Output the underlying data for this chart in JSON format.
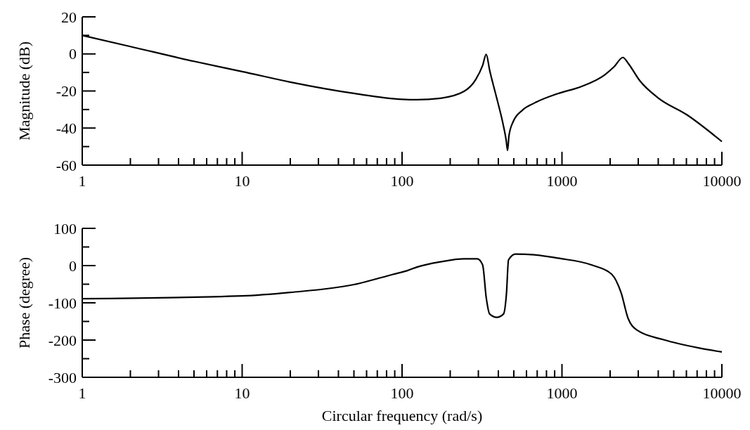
{
  "chart_data": [
    {
      "type": "line",
      "ylabel": "Magnitude (dB)",
      "log": "x",
      "color": "#000000",
      "marker": "none",
      "line_style": "solid",
      "x": [
        1,
        2,
        5,
        10,
        20,
        50,
        100,
        124,
        174,
        244,
        289,
        319,
        336,
        353,
        391,
        425,
        448,
        457,
        466,
        495,
        567,
        672,
        942,
        1319,
        1849,
        2118,
        2405,
        2592,
        3070,
        4020,
        6030,
        10000
      ],
      "values": [
        10,
        4,
        -4,
        -9.5,
        -15.2,
        -21.3,
        -24.5,
        -24.7,
        -23.9,
        -20.2,
        -13.8,
        -6.2,
        -0.2,
        -8.8,
        -23.9,
        -36.6,
        -46.7,
        -52.1,
        -44.2,
        -36.6,
        -30.3,
        -26.5,
        -21.4,
        -17.6,
        -11.3,
        -6.9,
        -1.9,
        -5,
        -14.5,
        -23.9,
        -32.8,
        -47.3
      ],
      "xlim": [
        1,
        10000
      ],
      "ylim": [
        -60,
        20
      ],
      "xticks": [
        1,
        {
          "value": 2,
          "label": null
        },
        {
          "value": 3,
          "label": null
        },
        {
          "value": 4,
          "label": null
        },
        {
          "value": 5,
          "label": null
        },
        {
          "value": 6,
          "label": null
        },
        {
          "value": 7,
          "label": null
        },
        {
          "value": 8,
          "label": null
        },
        {
          "value": 9,
          "label": null
        },
        10,
        {
          "value": 20,
          "label": null
        },
        {
          "value": 30,
          "label": null
        },
        {
          "value": 40,
          "label": null
        },
        {
          "value": 50,
          "label": null
        },
        {
          "value": 60,
          "label": null
        },
        {
          "value": 70,
          "label": null
        },
        {
          "value": 80,
          "label": null
        },
        {
          "value": 90,
          "label": null
        },
        100,
        {
          "value": 200,
          "label": null
        },
        {
          "value": 300,
          "label": null
        },
        {
          "value": 400,
          "label": null
        },
        {
          "value": 500,
          "label": null
        },
        {
          "value": 600,
          "label": null
        },
        {
          "value": 700,
          "label": null
        },
        {
          "value": 800,
          "label": null
        },
        {
          "value": 900,
          "label": null
        },
        1000,
        {
          "value": 2000,
          "label": null
        },
        {
          "value": 3000,
          "label": null
        },
        {
          "value": 4000,
          "label": null
        },
        {
          "value": 5000,
          "label": null
        },
        {
          "value": 6000,
          "label": null
        },
        {
          "value": 7000,
          "label": null
        },
        {
          "value": 8000,
          "label": null
        },
        {
          "value": 9000,
          "label": null
        },
        10000
      ],
      "yticks": [
        -60,
        {
          "value": -50,
          "label": null
        },
        -40,
        {
          "value": -30,
          "label": null
        },
        -20,
        {
          "value": -10,
          "label": null
        },
        0,
        {
          "value": 10,
          "label": null
        },
        20
      ]
    },
    {
      "type": "line",
      "xlabel": "Circular frequency (rad/s)",
      "ylabel": "Phase (degree)",
      "log": "x",
      "color": "#000000",
      "marker": "none",
      "line_style": "solid",
      "x": [
        1,
        10,
        20,
        50,
        88.6,
        108,
        124,
        174,
        244,
        295,
        319,
        336,
        353,
        391,
        431,
        450,
        463,
        512,
        672,
        942,
        1553,
        2045,
        2343,
        2592,
        2963,
        4326,
        7145,
        10000
      ],
      "values": [
        -89,
        -81.5,
        -72,
        -51,
        -23,
        -13.4,
        -4,
        10,
        18,
        18,
        2,
        -86,
        -130,
        -139,
        -130,
        -73,
        15,
        31,
        29,
        20,
        1,
        -23,
        -73,
        -142,
        -174,
        -199,
        -221,
        -232
      ],
      "xlim": [
        1,
        10000
      ],
      "ylim": [
        -300,
        100
      ],
      "xticks": [
        1,
        {
          "value": 2,
          "label": null
        },
        {
          "value": 3,
          "label": null
        },
        {
          "value": 4,
          "label": null
        },
        {
          "value": 5,
          "label": null
        },
        {
          "value": 6,
          "label": null
        },
        {
          "value": 7,
          "label": null
        },
        {
          "value": 8,
          "label": null
        },
        {
          "value": 9,
          "label": null
        },
        10,
        {
          "value": 20,
          "label": null
        },
        {
          "value": 30,
          "label": null
        },
        {
          "value": 40,
          "label": null
        },
        {
          "value": 50,
          "label": null
        },
        {
          "value": 60,
          "label": null
        },
        {
          "value": 70,
          "label": null
        },
        {
          "value": 80,
          "label": null
        },
        {
          "value": 90,
          "label": null
        },
        100,
        {
          "value": 200,
          "label": null
        },
        {
          "value": 300,
          "label": null
        },
        {
          "value": 400,
          "label": null
        },
        {
          "value": 500,
          "label": null
        },
        {
          "value": 600,
          "label": null
        },
        {
          "value": 700,
          "label": null
        },
        {
          "value": 800,
          "label": null
        },
        {
          "value": 900,
          "label": null
        },
        1000,
        {
          "value": 2000,
          "label": null
        },
        {
          "value": 3000,
          "label": null
        },
        {
          "value": 4000,
          "label": null
        },
        {
          "value": 5000,
          "label": null
        },
        {
          "value": 6000,
          "label": null
        },
        {
          "value": 7000,
          "label": null
        },
        {
          "value": 8000,
          "label": null
        },
        {
          "value": 9000,
          "label": null
        },
        10000
      ],
      "yticks": [
        -300,
        {
          "value": -250,
          "label": null
        },
        -200,
        {
          "value": -150,
          "label": null
        },
        -100,
        {
          "value": -50,
          "label": null
        },
        0,
        {
          "value": 50,
          "label": null
        },
        100
      ]
    }
  ]
}
